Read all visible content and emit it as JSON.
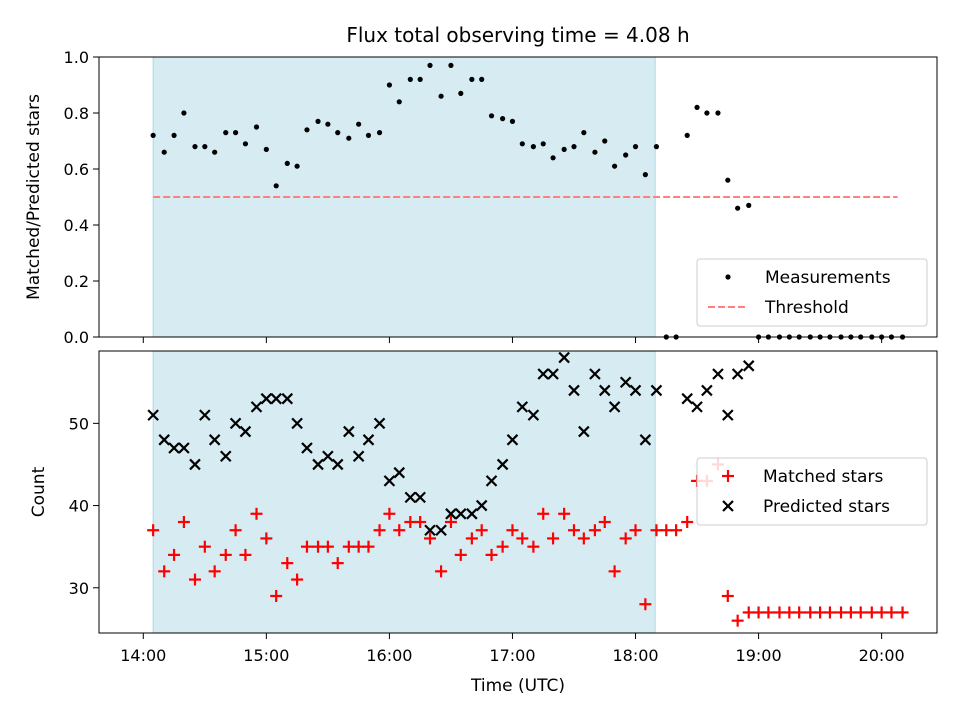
{
  "chart_data": [
    {
      "type": "scatter",
      "title": "Flux total observing time = 4.08 h",
      "ylabel": "Matched/Predicted stars",
      "xlabel": "",
      "ylim": [
        0,
        1.0
      ],
      "xlim_hours": [
        13.64,
        20.45
      ],
      "x_ticks": [
        14,
        15,
        16,
        17,
        18,
        19,
        20
      ],
      "y_ticks": [
        0.0,
        0.2,
        0.4,
        0.6,
        0.8,
        1.0
      ],
      "y_tick_labels": [
        "0.0",
        "0.2",
        "0.4",
        "0.6",
        "0.8",
        "1.0"
      ],
      "shaded_span_hours": [
        14.08,
        18.16
      ],
      "threshold": {
        "value": 0.5,
        "x_start": 14.08,
        "x_end": 20.13,
        "color": "#ff7f7f"
      },
      "legend": {
        "position": "lower-right",
        "items": [
          "Measurements",
          "Threshold"
        ]
      },
      "series": [
        {
          "name": "Measurements",
          "color": "#000000",
          "marker": "dot",
          "x": [
            14.08,
            14.17,
            14.25,
            14.33,
            14.42,
            14.5,
            14.58,
            14.67,
            14.75,
            14.83,
            14.92,
            15.0,
            15.08,
            15.17,
            15.25,
            15.33,
            15.42,
            15.5,
            15.58,
            15.67,
            15.75,
            15.83,
            15.92,
            16.0,
            16.08,
            16.17,
            16.25,
            16.33,
            16.42,
            16.5,
            16.58,
            16.67,
            16.75,
            16.83,
            16.92,
            17.0,
            17.08,
            17.17,
            17.25,
            17.33,
            17.42,
            17.5,
            17.58,
            17.67,
            17.75,
            17.83,
            17.92,
            18.0,
            18.08,
            18.17,
            18.25,
            18.33,
            18.42,
            18.5,
            18.58,
            18.67,
            18.75,
            18.83,
            18.92,
            19.0,
            19.08,
            19.17,
            19.25,
            19.33,
            19.42,
            19.5,
            19.58,
            19.67,
            19.75,
            19.83,
            19.92,
            20.0,
            20.08,
            20.17
          ],
          "y": [
            0.72,
            0.66,
            0.72,
            0.8,
            0.68,
            0.68,
            0.66,
            0.73,
            0.73,
            0.69,
            0.75,
            0.67,
            0.54,
            0.62,
            0.61,
            0.74,
            0.77,
            0.76,
            0.73,
            0.71,
            0.76,
            0.72,
            0.73,
            0.9,
            0.84,
            0.92,
            0.92,
            0.97,
            0.86,
            0.97,
            0.87,
            0.92,
            0.92,
            0.79,
            0.78,
            0.77,
            0.69,
            0.68,
            0.69,
            0.64,
            0.67,
            0.68,
            0.73,
            0.66,
            0.7,
            0.61,
            0.65,
            0.68,
            0.58,
            0.68,
            0.0,
            0.0,
            0.72,
            0.82,
            0.8,
            0.8,
            0.56,
            0.46,
            0.47,
            0.0,
            0.0,
            0.0,
            0.0,
            0.0,
            0.0,
            0.0,
            0.0,
            0.0,
            0.0,
            0.0,
            0.0,
            0.0,
            0.0,
            0.0
          ]
        }
      ]
    },
    {
      "type": "scatter",
      "title": "",
      "ylabel": "Count",
      "xlabel": "Time (UTC)",
      "ylim": [
        24.5,
        58.8
      ],
      "xlim_hours": [
        13.64,
        20.45
      ],
      "x_ticks": [
        14,
        15,
        16,
        17,
        18,
        19,
        20
      ],
      "x_tick_labels": [
        "14:00",
        "15:00",
        "16:00",
        "17:00",
        "18:00",
        "19:00",
        "20:00"
      ],
      "y_ticks": [
        30,
        40,
        50
      ],
      "y_tick_labels": [
        "30",
        "40",
        "50"
      ],
      "shaded_span_hours": [
        14.08,
        18.16
      ],
      "legend": {
        "position": "center-right",
        "items": [
          "Matched stars",
          "Predicted stars"
        ]
      },
      "series": [
        {
          "name": "Matched stars",
          "color": "#ff0000",
          "marker": "plus",
          "x": [
            14.08,
            14.17,
            14.25,
            14.33,
            14.42,
            14.5,
            14.58,
            14.67,
            14.75,
            14.83,
            14.92,
            15.0,
            15.08,
            15.17,
            15.25,
            15.33,
            15.42,
            15.5,
            15.58,
            15.67,
            15.75,
            15.83,
            15.92,
            16.0,
            16.08,
            16.17,
            16.25,
            16.33,
            16.42,
            16.5,
            16.58,
            16.67,
            16.75,
            16.83,
            16.92,
            17.0,
            17.08,
            17.17,
            17.25,
            17.33,
            17.42,
            17.5,
            17.58,
            17.67,
            17.75,
            17.83,
            17.92,
            18.0,
            18.08,
            18.17,
            18.25,
            18.33,
            18.42,
            18.5,
            18.58,
            18.67,
            18.75,
            18.83,
            18.92,
            19.0,
            19.08,
            19.17,
            19.25,
            19.33,
            19.42,
            19.5,
            19.58,
            19.67,
            19.75,
            19.83,
            19.92,
            20.0,
            20.08,
            20.17
          ],
          "y": [
            37,
            32,
            34,
            38,
            31,
            35,
            32,
            34,
            37,
            34,
            39,
            36,
            29,
            33,
            31,
            35,
            35,
            35,
            33,
            35,
            35,
            35,
            37,
            39,
            37,
            38,
            38,
            36,
            32,
            38,
            34,
            36,
            37,
            34,
            35,
            37,
            36,
            35,
            39,
            36,
            39,
            37,
            36,
            37,
            38,
            32,
            36,
            37,
            28,
            37,
            37,
            37,
            38,
            43,
            43,
            45,
            29,
            26,
            27,
            27,
            27,
            27,
            27,
            27,
            27,
            27,
            27,
            27,
            27,
            27,
            27,
            27,
            27,
            27
          ]
        },
        {
          "name": "Predicted stars",
          "color": "#000000",
          "marker": "x",
          "x": [
            14.08,
            14.17,
            14.25,
            14.33,
            14.42,
            14.5,
            14.58,
            14.67,
            14.75,
            14.83,
            14.92,
            15.0,
            15.08,
            15.17,
            15.25,
            15.33,
            15.42,
            15.5,
            15.58,
            15.67,
            15.75,
            15.83,
            15.92,
            16.0,
            16.08,
            16.17,
            16.25,
            16.33,
            16.42,
            16.5,
            16.58,
            16.67,
            16.75,
            16.83,
            16.92,
            17.0,
            17.08,
            17.17,
            17.25,
            17.33,
            17.42,
            17.5,
            17.58,
            17.67,
            17.75,
            17.83,
            17.92,
            18.0,
            18.08,
            18.17,
            18.42,
            18.5,
            18.58,
            18.67,
            18.75,
            18.83,
            18.92
          ],
          "y": [
            51,
            48,
            47,
            47,
            45,
            51,
            48,
            46,
            50,
            49,
            52,
            53,
            53,
            53,
            50,
            47,
            45,
            46,
            45,
            49,
            46,
            48,
            50,
            43,
            44,
            41,
            41,
            37,
            37,
            39,
            39,
            39,
            40,
            43,
            45,
            48,
            52,
            51,
            56,
            56,
            58,
            54,
            49,
            56,
            54,
            52,
            55,
            54,
            48,
            54,
            53,
            52,
            54,
            56,
            51,
            56,
            57
          ]
        }
      ]
    }
  ]
}
